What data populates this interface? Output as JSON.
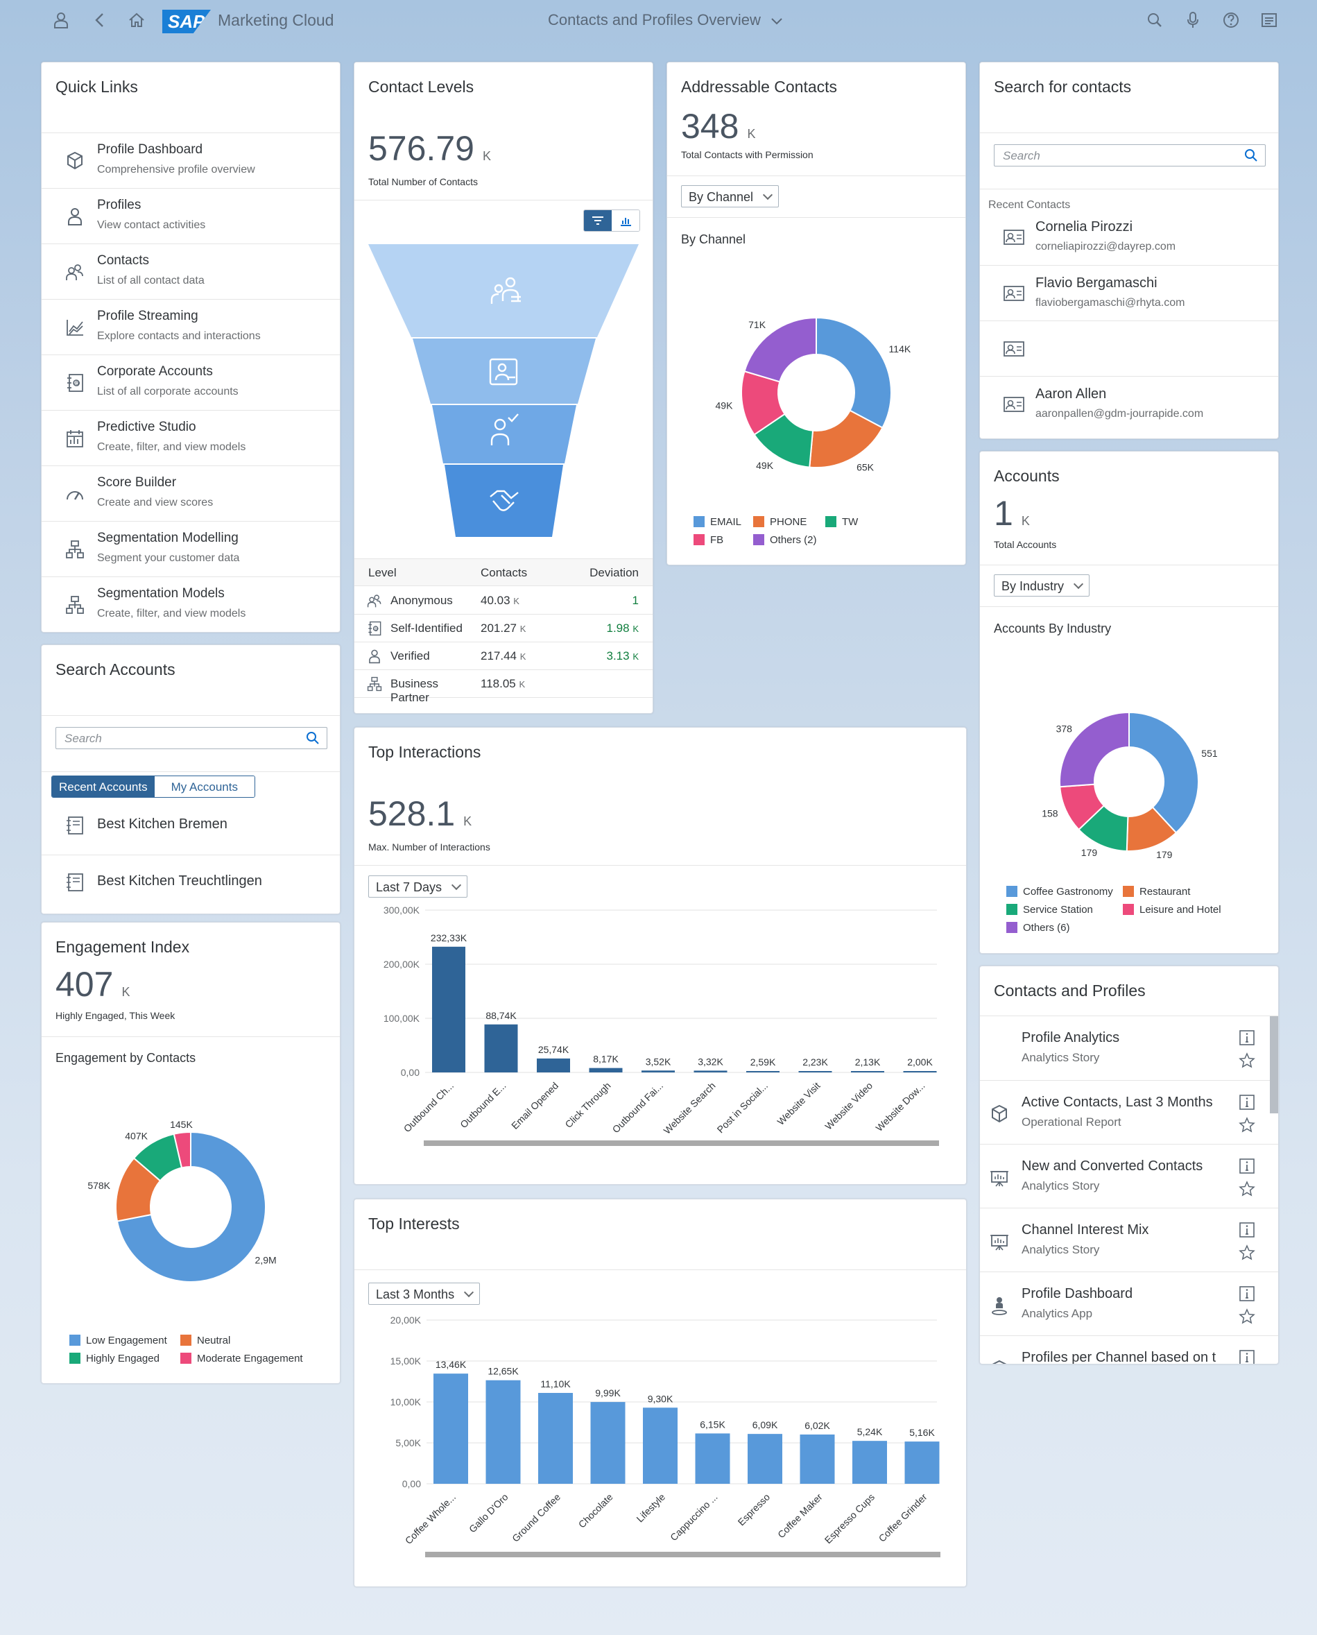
{
  "shell": {
    "app_title": "Marketing Cloud",
    "page_title": "Contacts and Profiles Overview",
    "logo_text": "SAP"
  },
  "quick_links": {
    "title": "Quick Links",
    "items": [
      {
        "title": "Profile Dashboard",
        "desc": "Comprehensive profile overview",
        "icon": "cubes-icon"
      },
      {
        "title": "Profiles",
        "desc": "View contact activities",
        "icon": "person-icon"
      },
      {
        "title": "Contacts",
        "desc": "List of all contact data",
        "icon": "group-icon"
      },
      {
        "title": "Profile Streaming",
        "desc": "Explore contacts and interactions",
        "icon": "line-chart-icon"
      },
      {
        "title": "Corporate Accounts",
        "desc": "List of all corporate accounts",
        "icon": "address-book-icon"
      },
      {
        "title": "Predictive Studio",
        "desc": "Create, filter, and view models",
        "icon": "calendar-chart-icon"
      },
      {
        "title": "Score Builder",
        "desc": "Create and view scores",
        "icon": "gauge-icon"
      },
      {
        "title": "Segmentation Modelling",
        "desc": "Segment your customer data",
        "icon": "hierarchy-icon"
      },
      {
        "title": "Segmentation Models",
        "desc": "Create, filter, and view models",
        "icon": "hierarchy-icon"
      }
    ]
  },
  "search_accounts": {
    "title": "Search Accounts",
    "placeholder": "Search",
    "tabs": [
      "Recent Accounts",
      "My Accounts"
    ],
    "items": [
      "Best Kitchen Bremen",
      "Best Kitchen Treuchtlingen"
    ]
  },
  "engagement": {
    "title": "Engagement Index",
    "kpi": "407",
    "unit": "K",
    "subtitle": "Highly Engaged, This Week",
    "chart_title": "Engagement by Contacts"
  },
  "contact_levels": {
    "title": "Contact Levels",
    "kpi": "576.79",
    "unit": "K",
    "subtitle": "Total Number of Contacts",
    "columns": [
      "Level",
      "Contacts",
      "Deviation"
    ],
    "rows": [
      {
        "level": "Anonymous",
        "contacts": "40.03",
        "cu": "K",
        "dev": "1",
        "du": ""
      },
      {
        "level": "Self-Identified",
        "contacts": "201.27",
        "cu": "K",
        "dev": "1.98",
        "du": "K"
      },
      {
        "level": "Verified",
        "contacts": "217.44",
        "cu": "K",
        "dev": "3.13",
        "du": "K"
      },
      {
        "level": "Business Partner",
        "contacts": "118.05",
        "cu": "K",
        "dev": "",
        "du": ""
      }
    ]
  },
  "addressable": {
    "title": "Addressable Contacts",
    "kpi": "348",
    "unit": "K",
    "subtitle": "Total Contacts with Permission",
    "dropdown": "By Channel",
    "chart_title": "By Channel"
  },
  "search_contacts": {
    "title": "Search for contacts",
    "placeholder": "Search",
    "recent_label": "Recent Contacts",
    "items": [
      {
        "name": "Cornelia Pirozzi",
        "email": "corneliapirozzi@dayrep.com"
      },
      {
        "name": "Flavio Bergamaschi",
        "email": "flaviobergamaschi@rhyta.com"
      },
      {
        "name": "",
        "email": ""
      },
      {
        "name": "Aaron Allen",
        "email": "aaronpallen@gdm-jourrapide.com"
      }
    ]
  },
  "accounts": {
    "title": "Accounts",
    "kpi": "1",
    "unit": "K",
    "subtitle": "Total Accounts",
    "dropdown": "By Industry",
    "chart_title": "Accounts By Industry"
  },
  "top_interactions": {
    "title": "Top Interactions",
    "kpi": "528.1",
    "unit": "K",
    "subtitle": "Max. Number of Interactions",
    "dropdown": "Last 7 Days"
  },
  "top_interests": {
    "title": "Top Interests",
    "dropdown": "Last 3 Months"
  },
  "contacts_profiles": {
    "title": "Contacts and Profiles",
    "items": [
      {
        "title": "Profile Analytics",
        "desc": "Analytics Story",
        "icon": ""
      },
      {
        "title": "Active Contacts, Last 3 Months",
        "desc": "Operational Report",
        "icon": "cubes-icon"
      },
      {
        "title": "New and Converted Contacts",
        "desc": "Analytics Story",
        "icon": "presentation-icon"
      },
      {
        "title": "Channel Interest Mix",
        "desc": "Analytics Story",
        "icon": "presentation-icon"
      },
      {
        "title": "Profile Dashboard",
        "desc": "Analytics App",
        "icon": "person-pin-icon"
      },
      {
        "title": "Profiles per Channel based on t",
        "desc": "",
        "icon": "cubes-icon"
      }
    ]
  },
  "chart_data": [
    {
      "type": "pie",
      "id": "engagement",
      "donut": true,
      "labels": [
        "Low Engagement",
        "Neutral",
        "Highly Engaged",
        "Moderate Engagement"
      ],
      "values": [
        2900,
        578,
        407,
        145
      ],
      "value_labels": [
        "2,9M",
        "578K",
        "407K",
        "145K"
      ],
      "colors": [
        "#5899da",
        "#e8743b",
        "#19a979",
        "#ed4a7b"
      ],
      "legend": "bottom"
    },
    {
      "type": "pie",
      "id": "channel",
      "donut": true,
      "labels": [
        "EMAIL",
        "PHONE",
        "TW",
        "FB",
        "Others (2)"
      ],
      "values": [
        114,
        65,
        49,
        49,
        71
      ],
      "value_labels": [
        "114K",
        "65K",
        "49K",
        "49K",
        "71K"
      ],
      "colors": [
        "#5899da",
        "#e8743b",
        "#19a979",
        "#ed4a7b",
        "#945ecf"
      ],
      "legend": "bottom"
    },
    {
      "type": "pie",
      "id": "industry",
      "donut": true,
      "labels": [
        "Coffee Gastronomy",
        "Restaurant",
        "Service Station",
        "Leisure and Hotel",
        "Others (6)"
      ],
      "values": [
        551,
        179,
        179,
        158,
        378
      ],
      "value_labels": [
        "551",
        "179",
        "179",
        "158",
        "378"
      ],
      "colors": [
        "#5899da",
        "#e8743b",
        "#19a979",
        "#ed4a7b",
        "#945ecf"
      ],
      "legend": "bottom"
    },
    {
      "type": "bar",
      "id": "interactions",
      "categories": [
        "Outbound Ch...",
        "Outbound E...",
        "Email Opened",
        "Click Through",
        "Outbound Fai...",
        "Website Search",
        "Post in Social...",
        "Website Visit",
        "Website Video",
        "Website Dow..."
      ],
      "values": [
        232.33,
        88.74,
        25.74,
        8.17,
        3.52,
        3.32,
        2.59,
        2.23,
        2.13,
        2.0
      ],
      "value_labels": [
        "232,33K",
        "88,74K",
        "25,74K",
        "8,17K",
        "3,52K",
        "3,32K",
        "2,59K",
        "2,23K",
        "2,13K",
        "2,00K"
      ],
      "yticks": [
        "0,00",
        "100,00K",
        "200,00K",
        "300,00K"
      ],
      "ylim": [
        0,
        300
      ],
      "color": "#2f6497"
    },
    {
      "type": "bar",
      "id": "interests",
      "categories": [
        "Coffee Whole...",
        "Gallo D'Oro",
        "Ground Coffee",
        "Chocolate",
        "Lifestyle",
        "Cappuccino ...",
        "Espresso",
        "Coffee Maker",
        "Espresso Cups",
        "Coffee Grinder"
      ],
      "values": [
        13.46,
        12.65,
        11.1,
        9.99,
        9.3,
        6.15,
        6.09,
        6.02,
        5.24,
        5.16
      ],
      "value_labels": [
        "13,46K",
        "12,65K",
        "11,10K",
        "9,99K",
        "9,30K",
        "6,15K",
        "6,09K",
        "6,02K",
        "5,24K",
        "5,16K"
      ],
      "yticks": [
        "0,00",
        "5,00K",
        "10,00K",
        "15,00K",
        "20,00K"
      ],
      "ylim": [
        0,
        20
      ],
      "color": "#5899da"
    }
  ]
}
